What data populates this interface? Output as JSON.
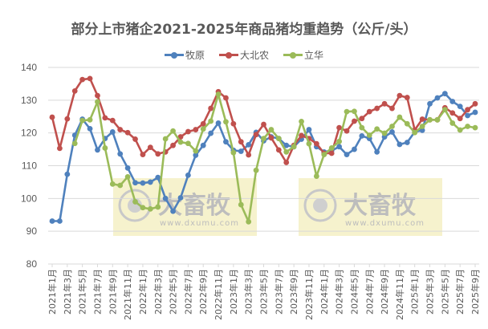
{
  "chart_data": {
    "type": "line",
    "title": "部分上市猪企2021-2025年商品猪均重趋势（公斤/头）",
    "xlabel": "",
    "ylabel": "",
    "ylim": [
      80,
      140
    ],
    "yticks": [
      80,
      90,
      100,
      110,
      120,
      130,
      140
    ],
    "grid": true,
    "legend_position": "top",
    "xtick_labels": [
      "2021年1月",
      "2021年3月",
      "2021年5月",
      "2021年7月",
      "2021年9月",
      "2021年11月",
      "2022年1月",
      "2022年3月",
      "2022年5月",
      "2022年7月",
      "2022年9月",
      "2022年11月",
      "2023年1月",
      "2023年3月",
      "2023年5月",
      "2023年7月",
      "2023年9月",
      "2023年11月",
      "2024年1月",
      "2024年3月",
      "2024年5月",
      "2024年7月",
      "2024年9月",
      "2024年11月",
      "2025年1月",
      "2025年3月",
      "2025年5月",
      "2025年7月",
      "2025年9月"
    ],
    "x": [
      "2021-01",
      "2021-02",
      "2021-03",
      "2021-04",
      "2021-05",
      "2021-06",
      "2021-07",
      "2021-08",
      "2021-09",
      "2021-10",
      "2021-11",
      "2021-12",
      "2022-01",
      "2022-02",
      "2022-03",
      "2022-04",
      "2022-05",
      "2022-06",
      "2022-07",
      "2022-08",
      "2022-09",
      "2022-10",
      "2022-11",
      "2022-12",
      "2023-01",
      "2023-02",
      "2023-03",
      "2023-04",
      "2023-05",
      "2023-06",
      "2023-07",
      "2023-08",
      "2023-09",
      "2023-10",
      "2023-11",
      "2023-12",
      "2024-01",
      "2024-02",
      "2024-03",
      "2024-04",
      "2024-05",
      "2024-06",
      "2024-07",
      "2024-08",
      "2024-09",
      "2024-10",
      "2024-11",
      "2024-12",
      "2025-01",
      "2025-02",
      "2025-03",
      "2025-04",
      "2025-05",
      "2025-06",
      "2025-07",
      "2025-08",
      "2025-09"
    ],
    "series": [
      {
        "name": "牧原",
        "color": "#4f81bd",
        "values": [
          93.1,
          93.1,
          107.4,
          119.3,
          124.2,
          121.3,
          114.8,
          118.3,
          120.3,
          113.6,
          109.3,
          104.8,
          104.7,
          105.0,
          106.4,
          100.0,
          96.1,
          100.2,
          107.1,
          113.2,
          116.2,
          119.9,
          123.0,
          117.3,
          114.7,
          114.4,
          116.4,
          120.2,
          117.6,
          118.8,
          118.3,
          116.2,
          115.8,
          118.1,
          121.0,
          115.8,
          114.2,
          114.6,
          115.8,
          113.4,
          115.0,
          119.1,
          118.3,
          114.2,
          118.8,
          120.3,
          116.5,
          117.1,
          120.3,
          120.8,
          128.9,
          130.7,
          132.0,
          129.6,
          128.1,
          125.3,
          126.3
        ]
      },
      {
        "name": "大北农",
        "color": "#c0504d",
        "values": [
          124.8,
          115.3,
          124.3,
          132.8,
          136.3,
          136.6,
          131.4,
          124.6,
          123.8,
          121.0,
          120.1,
          118.1,
          113.4,
          115.6,
          113.6,
          114.2,
          116.2,
          118.8,
          120.4,
          121.0,
          122.8,
          127.5,
          132.6,
          130.7,
          122.8,
          117.3,
          113.3,
          119.5,
          122.6,
          118.5,
          114.8,
          111.0,
          116.2,
          119.2,
          118.3,
          116.7,
          113.8,
          113.8,
          121.6,
          120.6,
          123.6,
          124.4,
          126.5,
          127.5,
          128.9,
          127.5,
          131.4,
          130.8,
          120.9,
          124.2,
          124.0,
          124.0,
          127.7,
          126.1,
          124.4,
          127.1,
          128.9
        ]
      },
      {
        "name": "立华",
        "color": "#9bbb59",
        "values": [
          null,
          null,
          null,
          116.8,
          123.8,
          124.0,
          129.5,
          115.4,
          104.4,
          104.0,
          106.6,
          99.0,
          97.2,
          96.8,
          97.4,
          118.2,
          120.6,
          117.2,
          116.8,
          114.5,
          121.2,
          123.6,
          131.8,
          123.4,
          114.0,
          98.1,
          92.9,
          108.6,
          118.3,
          121.0,
          118.3,
          114.2,
          115.8,
          123.5,
          116.7,
          106.8,
          113.4,
          115.4,
          117.4,
          126.5,
          126.6,
          121.6,
          119.3,
          121.2,
          119.9,
          122.0,
          124.8,
          122.8,
          120.1,
          122.0,
          124.0,
          124.0,
          127.1,
          123.0,
          120.9,
          122.0,
          121.6
        ]
      }
    ]
  },
  "watermarks": [
    {
      "brand": "大畜牧",
      "url": "www.dxumu.com"
    },
    {
      "brand": "大畜牧",
      "url": "www.dxumu.com"
    }
  ]
}
